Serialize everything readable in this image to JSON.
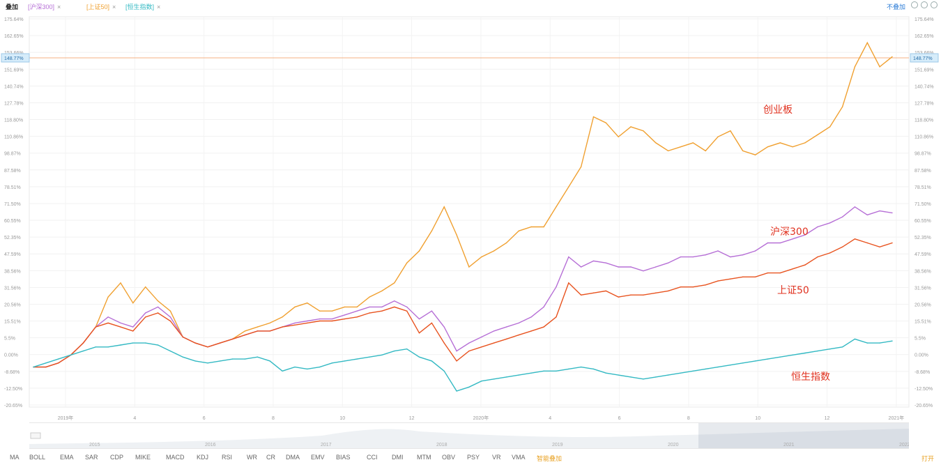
{
  "toolbar": {
    "main_label": "叠加",
    "compare_items": [
      {
        "label": "[沪深300]",
        "color": "#b66fd6"
      },
      {
        "label": "[上证50]",
        "color": "#f0a030"
      },
      {
        "label": "[恒生指数]",
        "color": "#33b9c3"
      }
    ],
    "right_label": "不叠加",
    "icons": [
      "undo-icon",
      "settings-icon",
      "fullscreen-icon"
    ]
  },
  "indicators": [
    "MA",
    "BOLL",
    "EMA",
    "SAR",
    "CDP",
    "MIKE",
    "MACD",
    "KDJ",
    "RSI",
    "WR",
    "CR",
    "DMA",
    "EMV",
    "BIAS",
    "CCI",
    "DMI",
    "MTM",
    "OBV",
    "PSY",
    "VR",
    "VMA"
  ],
  "indicator_active": "智能叠加",
  "indicator_right": "打开",
  "chart_data": {
    "type": "line",
    "y_ticks": [
      "175.64%",
      "162.65%",
      "153.66%",
      "151.69%",
      "140.74%",
      "127.78%",
      "118.80%",
      "110.86%",
      "98.87%",
      "87.58%",
      "78.51%",
      "71.50%",
      "60.55%",
      "52.35%",
      "47.59%",
      "38.56%",
      "31.56%",
      "20.56%",
      "15.51%",
      "5.5%",
      "0.00%",
      "-8.68%",
      "-12.50%",
      "-20.65%"
    ],
    "y_min": -20,
    "y_max": 175,
    "right_highlight": "148.77%",
    "x_ticks": [
      "2019年",
      "4",
      "6",
      "8",
      "10",
      "12",
      "2020年",
      "4",
      "6",
      "8",
      "10",
      "12",
      "2021年"
    ],
    "nav_years": [
      "2015",
      "2016",
      "2017",
      "2018",
      "2019",
      "2020",
      "2021",
      "2022"
    ],
    "annotations": [
      "创业板",
      "沪深300",
      "上证50",
      "恒生指数"
    ],
    "series": [
      {
        "name": "创业板",
        "color": "#f0a030",
        "values": [
          0,
          0,
          2,
          6,
          12,
          20,
          35,
          42,
          32,
          40,
          33,
          28,
          15,
          12,
          10,
          12,
          14,
          18,
          20,
          22,
          25,
          30,
          32,
          28,
          28,
          30,
          30,
          35,
          38,
          42,
          52,
          58,
          68,
          80,
          66,
          50,
          55,
          58,
          62,
          68,
          70,
          70,
          80,
          90,
          100,
          125,
          122,
          115,
          120,
          118,
          112,
          108,
          110,
          112,
          108,
          115,
          118,
          108,
          106,
          110,
          112,
          110,
          112,
          116,
          120,
          130,
          150,
          162,
          150,
          155
        ]
      },
      {
        "name": "沪深300",
        "color": "#b66fd6",
        "values": [
          0,
          0,
          2,
          6,
          12,
          20,
          25,
          22,
          20,
          27,
          30,
          25,
          15,
          12,
          10,
          12,
          14,
          16,
          18,
          18,
          20,
          22,
          23,
          24,
          24,
          26,
          28,
          30,
          30,
          33,
          30,
          24,
          28,
          20,
          8,
          12,
          15,
          18,
          20,
          22,
          25,
          30,
          40,
          55,
          50,
          53,
          52,
          50,
          50,
          48,
          50,
          52,
          55,
          55,
          56,
          58,
          55,
          56,
          58,
          62,
          62,
          64,
          66,
          70,
          72,
          75,
          80,
          76,
          78,
          77
        ]
      },
      {
        "name": "上证50",
        "color": "#e8531f",
        "values": [
          0,
          0,
          2,
          6,
          12,
          20,
          22,
          20,
          18,
          25,
          27,
          23,
          15,
          12,
          10,
          12,
          14,
          16,
          18,
          18,
          20,
          21,
          22,
          23,
          23,
          24,
          25,
          27,
          28,
          30,
          28,
          17,
          22,
          12,
          3,
          8,
          10,
          12,
          14,
          16,
          18,
          20,
          25,
          42,
          36,
          37,
          38,
          35,
          36,
          36,
          37,
          38,
          40,
          40,
          41,
          43,
          44,
          45,
          45,
          47,
          47,
          49,
          51,
          55,
          57,
          60,
          64,
          62,
          60,
          62
        ]
      },
      {
        "name": "恒生指数",
        "color": "#33b9c3",
        "values": [
          0,
          2,
          4,
          6,
          8,
          10,
          10,
          11,
          12,
          12,
          11,
          8,
          5,
          3,
          2,
          3,
          4,
          4,
          5,
          3,
          -2,
          0,
          -1,
          0,
          2,
          3,
          4,
          5,
          6,
          8,
          9,
          5,
          3,
          -2,
          -12,
          -10,
          -7,
          -6,
          -5,
          -4,
          -3,
          -2,
          -2,
          -1,
          0,
          -1,
          -3,
          -4,
          -5,
          -6,
          -5,
          -4,
          -3,
          -2,
          -1,
          0,
          1,
          2,
          3,
          4,
          5,
          6,
          7,
          8,
          9,
          10,
          14,
          12,
          12,
          13
        ]
      }
    ]
  }
}
